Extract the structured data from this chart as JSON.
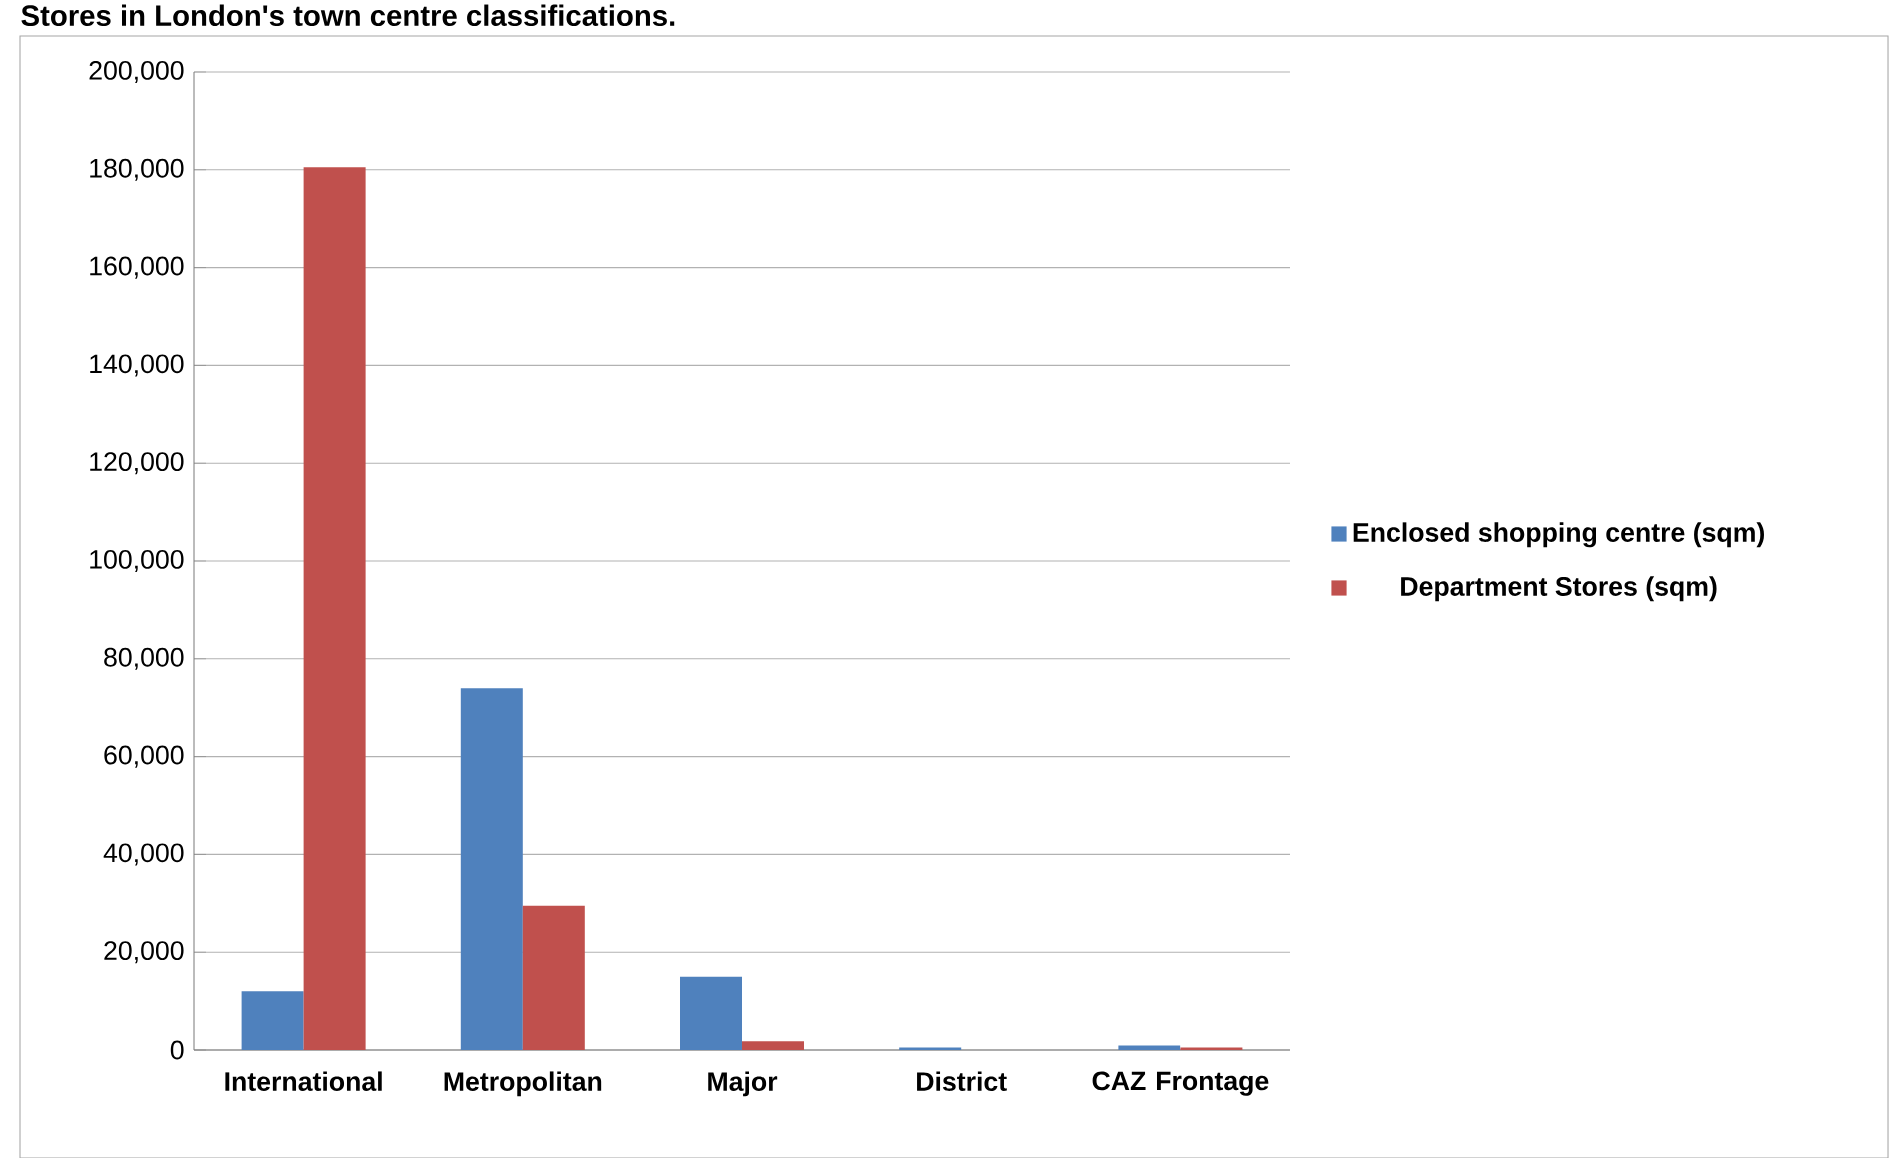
{
  "chart_data": {
    "type": "bar",
    "title": "Stores in London's town centre classifications.",
    "categories": [
      "International",
      "Metropolitan",
      "Major",
      "District",
      "CAZ Frontage"
    ],
    "series": [
      {
        "name": "Enclosed shopping centre (sqm)",
        "color": "#4f81bd",
        "values": [
          12000,
          74000,
          15000,
          500,
          900
        ]
      },
      {
        "name": "Department Stores (sqm)",
        "color": "#c0504d",
        "values": [
          180500,
          29500,
          1800,
          0,
          500
        ]
      }
    ],
    "ylim": [
      0,
      200000
    ],
    "yticks": [
      {
        "value": 0,
        "label": "0"
      },
      {
        "value": 20000,
        "label": "20,000"
      },
      {
        "value": 40000,
        "label": "40,000"
      },
      {
        "value": 60000,
        "label": "60,000"
      },
      {
        "value": 80000,
        "label": "80,000"
      },
      {
        "value": 100000,
        "label": "100,000"
      },
      {
        "value": 120000,
        "label": "120,000"
      },
      {
        "value": 140000,
        "label": "140,000"
      },
      {
        "value": 160000,
        "label": "160,000"
      },
      {
        "value": 180000,
        "label": "180,000"
      },
      {
        "value": 200000,
        "label": "200,000"
      }
    ],
    "grid": "y",
    "legend": "right"
  }
}
